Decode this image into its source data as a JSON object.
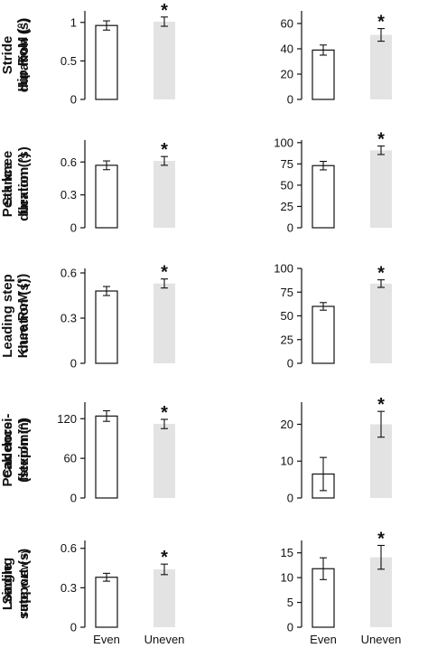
{
  "chart_data": [
    {
      "type": "bar",
      "ylabel": [
        "Stride",
        "duration (s)"
      ],
      "categories": [
        "Even",
        "Uneven"
      ],
      "values": [
        0.96,
        1.01
      ],
      "errors": [
        0.06,
        0.06
      ],
      "significant": [
        false,
        true
      ],
      "ylim": [
        0,
        1.15
      ],
      "yticks": [
        0,
        0.5,
        1
      ],
      "ytick_labels": [
        "0",
        "0.5",
        "1"
      ],
      "colors": [
        "#ffffff",
        "#e3e3e3"
      ]
    },
    {
      "type": "bar",
      "ylabel": [
        "Hip RoM (°)"
      ],
      "categories": [
        "Even",
        "Uneven"
      ],
      "values": [
        39,
        51
      ],
      "errors": [
        4,
        5
      ],
      "significant": [
        false,
        true
      ],
      "ylim": [
        0,
        70
      ],
      "yticks": [
        0,
        20,
        40,
        60
      ],
      "ytick_labels": [
        "0",
        "20",
        "40",
        "60"
      ],
      "colors": [
        "#ffffff",
        "#e3e3e3"
      ]
    },
    {
      "type": "bar",
      "ylabel": [
        "Stance",
        "duration (s)"
      ],
      "categories": [
        "Even",
        "Uneven"
      ],
      "values": [
        0.57,
        0.61
      ],
      "errors": [
        0.04,
        0.04
      ],
      "significant": [
        false,
        true
      ],
      "ylim": [
        0,
        0.8
      ],
      "yticks": [
        0,
        0.3,
        0.6
      ],
      "ytick_labels": [
        "0",
        "0.3",
        "0.6"
      ],
      "colors": [
        "#ffffff",
        "#e3e3e3"
      ]
    },
    {
      "type": "bar",
      "ylabel": [
        "Peak knee",
        "flexion (°)"
      ],
      "categories": [
        "Even",
        "Uneven"
      ],
      "values": [
        73,
        91
      ],
      "errors": [
        5,
        5
      ],
      "significant": [
        false,
        true
      ],
      "ylim": [
        0,
        103
      ],
      "yticks": [
        0,
        25,
        50,
        75,
        100
      ],
      "ytick_labels": [
        "0",
        "25",
        "50",
        "75",
        "100"
      ],
      "colors": [
        "#ffffff",
        "#e3e3e3"
      ]
    },
    {
      "type": "bar",
      "ylabel": [
        "Leading step",
        "duration (s)"
      ],
      "categories": [
        "Even",
        "Uneven"
      ],
      "values": [
        0.48,
        0.53
      ],
      "errors": [
        0.03,
        0.03
      ],
      "significant": [
        false,
        true
      ],
      "ylim": [
        0,
        0.63
      ],
      "yticks": [
        0,
        0.3,
        0.6
      ],
      "ytick_labels": [
        "0",
        "0.3",
        "0.6"
      ],
      "colors": [
        "#ffffff",
        "#e3e3e3"
      ]
    },
    {
      "type": "bar",
      "ylabel": [
        "Knee RoM (°)"
      ],
      "categories": [
        "Even",
        "Uneven"
      ],
      "values": [
        60,
        84
      ],
      "errors": [
        4,
        4
      ],
      "significant": [
        false,
        true
      ],
      "ylim": [
        0,
        100
      ],
      "yticks": [
        0,
        25,
        50,
        75,
        100
      ],
      "ytick_labels": [
        "0",
        "25",
        "50",
        "75",
        "100"
      ],
      "colors": [
        "#ffffff",
        "#e3e3e3"
      ]
    },
    {
      "type": "bar",
      "ylabel": [
        "Cadence",
        "(step/min)"
      ],
      "categories": [
        "Even",
        "Uneven"
      ],
      "values": [
        124,
        112
      ],
      "errors": [
        8,
        7
      ],
      "significant": [
        false,
        true
      ],
      "ylim": [
        0,
        145
      ],
      "yticks": [
        0,
        60,
        120
      ],
      "ytick_labels": [
        "0",
        "60",
        "120"
      ],
      "colors": [
        "#ffffff",
        "#e3e3e3"
      ]
    },
    {
      "type": "bar",
      "ylabel": [
        "Peak dorsi-",
        "flexion (°)"
      ],
      "categories": [
        "Even",
        "Uneven"
      ],
      "values": [
        6.5,
        20
      ],
      "errors": [
        4.5,
        3.5
      ],
      "significant": [
        false,
        true
      ],
      "ylim": [
        0,
        26
      ],
      "yticks": [
        0,
        10,
        20
      ],
      "ytick_labels": [
        "0",
        "10",
        "20"
      ],
      "colors": [
        "#ffffff",
        "#e3e3e3"
      ]
    },
    {
      "type": "bar",
      "ylabel": [
        "Single",
        "support (s)"
      ],
      "categories": [
        "Even",
        "Uneven"
      ],
      "values": [
        0.38,
        0.44
      ],
      "errors": [
        0.03,
        0.04
      ],
      "significant": [
        false,
        true
      ],
      "ylim": [
        0,
        0.66
      ],
      "yticks": [
        0,
        0.3,
        0.6
      ],
      "ytick_labels": [
        "0",
        "0.3",
        "0.6"
      ],
      "colors": [
        "#ffffff",
        "#e3e3e3"
      ]
    },
    {
      "type": "bar",
      "ylabel": [
        "Loading",
        "rate"
      ],
      "ylabel_unit": "(N/BW s)",
      "categories": [
        "Even",
        "Uneven"
      ],
      "values": [
        11.8,
        14.1
      ],
      "errors": [
        2.2,
        2.4
      ],
      "significant": [
        false,
        true
      ],
      "ylim": [
        0,
        17.5
      ],
      "yticks": [
        0,
        5,
        10,
        15
      ],
      "ytick_labels": [
        "0",
        "5",
        "10",
        "15"
      ],
      "colors": [
        "#ffffff",
        "#e3e3e3"
      ]
    }
  ],
  "significance_marker": "*"
}
